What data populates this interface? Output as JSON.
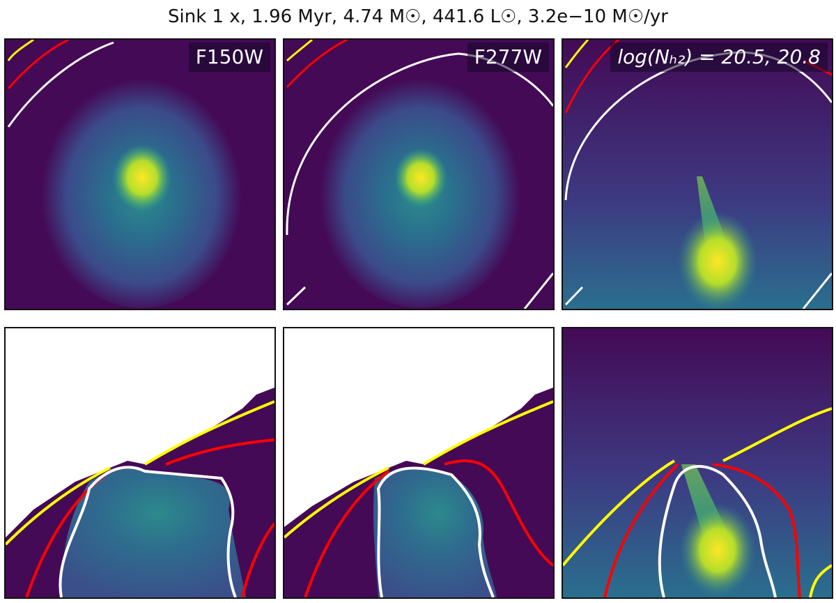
{
  "title": "Sink 1 x, 1.96 Myr, 4.74 M☉, 441.6 L☉, 3.2e−10 M☉/yr",
  "panels": {
    "top_left_label": "F150W",
    "top_middle_label": "F277W",
    "top_right_label": "log(Nₕ₂) = 20.5, 20.8"
  },
  "colors": {
    "background_dark": "#440a56",
    "viridis_mid": "#2a8a8a",
    "viridis_bright": "#fde725",
    "contour_yellow": "#ffff00",
    "contour_red": "#ff0000",
    "contour_white": "#ffffff"
  }
}
